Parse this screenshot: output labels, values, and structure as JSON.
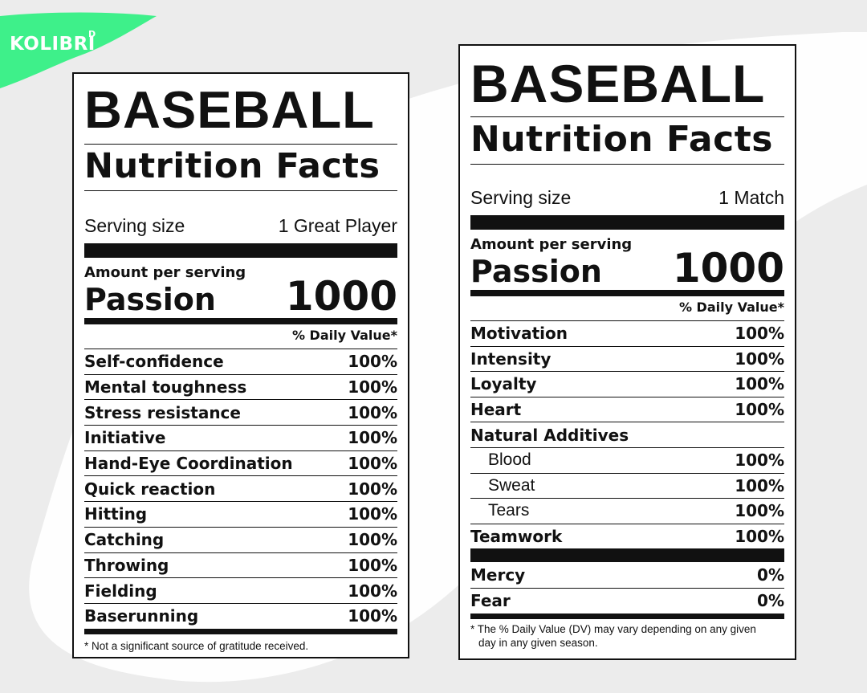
{
  "logo": {
    "text": "KOLIBRI",
    "superscript": "D"
  },
  "labels": [
    {
      "title": "BASEBALL",
      "subtitle": "Nutrition Facts",
      "serving_label": "Serving size",
      "serving_value": "1 Great Player",
      "amount_label": "Amount per serving",
      "passion_label": "Passion",
      "passion_value": "1000",
      "dv_header": "% Daily Value*",
      "rows": [
        {
          "name": "Self-confidence",
          "value": "100%"
        },
        {
          "name": "Mental toughness",
          "value": "100%"
        },
        {
          "name": "Stress resistance",
          "value": "100%"
        },
        {
          "name": "Initiative",
          "value": "100%"
        },
        {
          "name": "Hand-Eye Coordination",
          "value": "100%"
        },
        {
          "name": "Quick reaction",
          "value": "100%"
        },
        {
          "name": "Hitting",
          "value": "100%"
        },
        {
          "name": "Catching",
          "value": "100%"
        },
        {
          "name": "Throwing",
          "value": "100%"
        },
        {
          "name": "Fielding",
          "value": "100%"
        },
        {
          "name": "Baserunning",
          "value": "100%"
        }
      ],
      "footnote": "* Not a significant source of gratitude received."
    },
    {
      "title": "BASEBALL",
      "subtitle": "Nutrition Facts",
      "serving_label": "Serving size",
      "serving_value": "1 Match",
      "amount_label": "Amount per serving",
      "passion_label": "Passion",
      "passion_value": "1000",
      "dv_header": "% Daily Value*",
      "rows": [
        {
          "name": "Motivation",
          "value": "100%"
        },
        {
          "name": "Intensity",
          "value": "100%"
        },
        {
          "name": "Loyalty",
          "value": "100%"
        },
        {
          "name": "Heart",
          "value": "100%"
        },
        {
          "name": "Natural Additives",
          "value": ""
        },
        {
          "name": "Blood",
          "value": "100%"
        },
        {
          "name": "Sweat",
          "value": "100%"
        },
        {
          "name": "Tears",
          "value": "100%"
        },
        {
          "name": "Teamwork",
          "value": "100%"
        },
        {
          "name": "Mercy",
          "value": "0%"
        },
        {
          "name": "Fear",
          "value": "0%"
        }
      ],
      "footnote_line1": "* The % Daily Value (DV) may vary depending on any given",
      "footnote_line2": "day in any given season."
    }
  ]
}
